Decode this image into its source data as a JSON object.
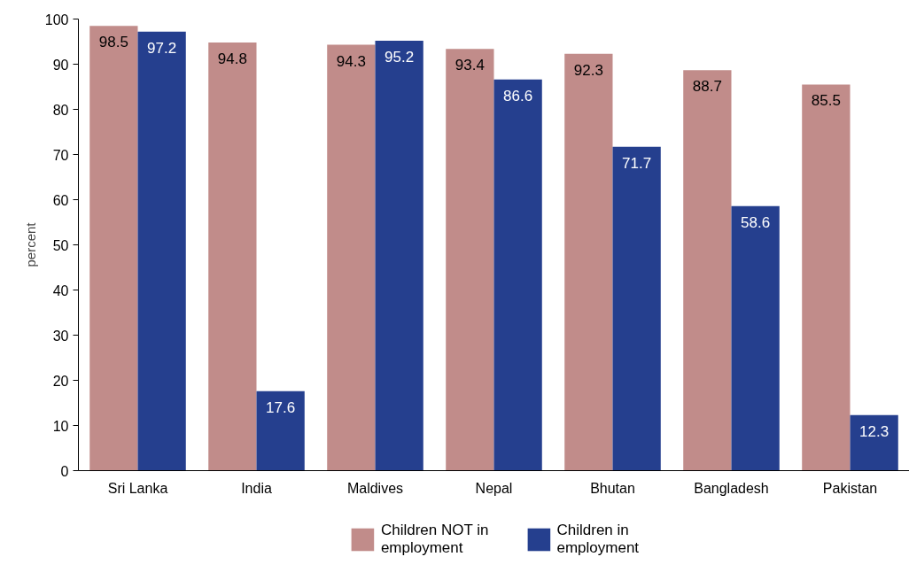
{
  "chart_data": {
    "type": "bar",
    "ylabel": "percent",
    "categories": [
      "Sri Lanka",
      "India",
      "Maldives",
      "Nepal",
      "Bhutan",
      "Bangladesh",
      "Pakistan"
    ],
    "series": [
      {
        "name": "Children NOT in employment",
        "color": "#c18c8a",
        "values": [
          98.5,
          94.8,
          94.3,
          93.4,
          92.3,
          88.7,
          85.5
        ]
      },
      {
        "name": "Children in employment",
        "color": "#253f8e",
        "values": [
          97.2,
          17.6,
          95.2,
          86.6,
          71.7,
          58.6,
          12.3
        ]
      }
    ],
    "ylim": [
      0,
      100
    ],
    "yticks": [
      0,
      10,
      20,
      30,
      40,
      50,
      60,
      70,
      80,
      90,
      100
    ],
    "grid": false,
    "legend": "bottom",
    "data_labels": true
  }
}
